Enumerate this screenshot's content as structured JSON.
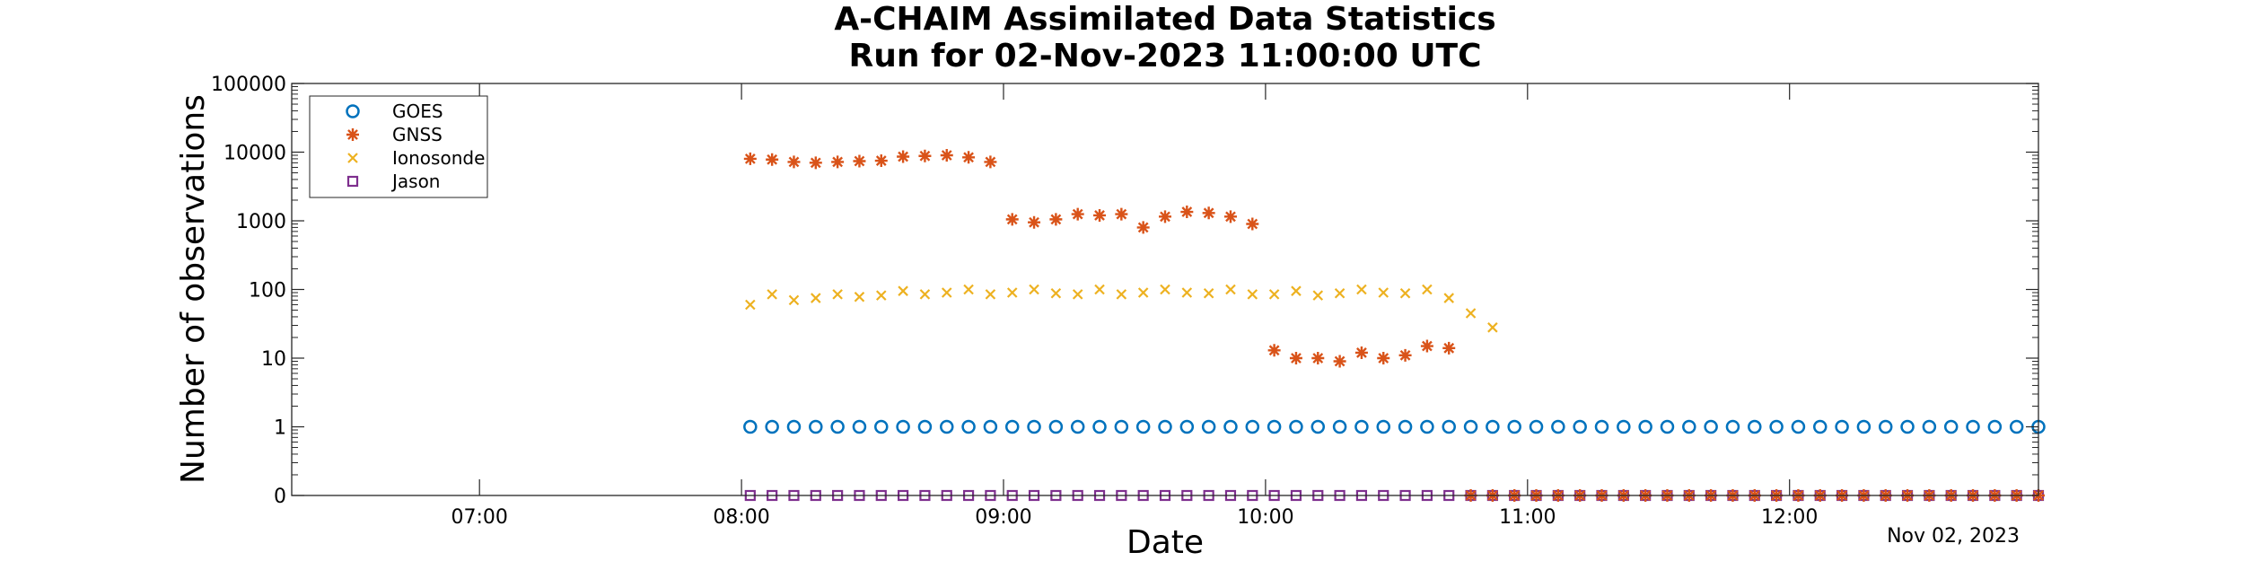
{
  "chart_data": {
    "type": "scatter",
    "title": [
      "A-CHAIM Assimilated Data Statistics",
      "Run for 02-Nov-2023 11:00:00 UTC"
    ],
    "xlabel": "Date",
    "ylabel": "Number of observations",
    "date_label": "Nov 02, 2023",
    "x_tick_labels": [
      "07:00",
      "08:00",
      "09:00",
      "10:00",
      "11:00",
      "12:00"
    ],
    "x_tick_values": [
      "06:00",
      "07:00",
      "08:00",
      "09:00",
      "10:00",
      "11:00",
      "12:00"
    ],
    "xlim": [
      "06:17",
      "12:57"
    ],
    "y_scale": "log",
    "y_tick_labels": [
      "0",
      "1",
      "10",
      "100",
      "1000",
      "10000",
      "100000"
    ],
    "ylim_decades": [
      -1,
      5
    ],
    "legend_position": "top-left",
    "series": [
      {
        "name": "GOES",
        "marker": "circle",
        "color": "#0072bd",
        "x": [
          "08:02",
          "08:07",
          "08:12",
          "08:17",
          "08:22",
          "08:27",
          "08:32",
          "08:37",
          "08:42",
          "08:47",
          "08:52",
          "08:57",
          "09:02",
          "09:07",
          "09:12",
          "09:17",
          "09:22",
          "09:27",
          "09:32",
          "09:37",
          "09:42",
          "09:47",
          "09:52",
          "09:57",
          "10:02",
          "10:07",
          "10:12",
          "10:17",
          "10:22",
          "10:27",
          "10:32",
          "10:37",
          "10:42",
          "10:47",
          "10:52",
          "10:57",
          "11:02",
          "11:07",
          "11:12",
          "11:17",
          "11:22",
          "11:27",
          "11:32",
          "11:37",
          "11:42",
          "11:47",
          "11:52",
          "11:57",
          "12:02",
          "12:07",
          "12:12",
          "12:17",
          "12:22",
          "12:27",
          "12:32",
          "12:37",
          "12:42",
          "12:47",
          "12:52",
          "12:57"
        ],
        "y": [
          1,
          1,
          1,
          1,
          1,
          1,
          1,
          1,
          1,
          1,
          1,
          1,
          1,
          1,
          1,
          1,
          1,
          1,
          1,
          1,
          1,
          1,
          1,
          1,
          1,
          1,
          1,
          1,
          1,
          1,
          1,
          1,
          1,
          1,
          1,
          1,
          1,
          1,
          1,
          1,
          1,
          1,
          1,
          1,
          1,
          1,
          1,
          1,
          1,
          1,
          1,
          1,
          1,
          1,
          1,
          1,
          1,
          1,
          1,
          1
        ]
      },
      {
        "name": "GNSS",
        "marker": "asterisk",
        "color": "#d95319",
        "x": [
          "08:02",
          "08:07",
          "08:12",
          "08:17",
          "08:22",
          "08:27",
          "08:32",
          "08:37",
          "08:42",
          "08:47",
          "08:52",
          "08:57",
          "09:02",
          "09:07",
          "09:12",
          "09:17",
          "09:22",
          "09:27",
          "09:32",
          "09:37",
          "09:42",
          "09:47",
          "09:52",
          "09:57",
          "10:02",
          "10:07",
          "10:12",
          "10:17",
          "10:22",
          "10:27",
          "10:32",
          "10:37",
          "10:42",
          "10:47",
          "10:52",
          "10:57",
          "11:02",
          "11:07",
          "11:12",
          "11:17",
          "11:22",
          "11:27",
          "11:32",
          "11:37",
          "11:42",
          "11:47",
          "11:52",
          "11:57",
          "12:02",
          "12:07",
          "12:12",
          "12:17",
          "12:22",
          "12:27",
          "12:32",
          "12:37",
          "12:42",
          "12:47",
          "12:52",
          "12:57"
        ],
        "y": [
          8000,
          7800,
          7200,
          7000,
          7200,
          7400,
          7500,
          8600,
          8800,
          9000,
          8400,
          7200,
          1050,
          950,
          1050,
          1250,
          1200,
          1250,
          800,
          1150,
          1350,
          1300,
          1150,
          900,
          13,
          10,
          10,
          9,
          12,
          10,
          11,
          15,
          14,
          0,
          0,
          0,
          0,
          0,
          0,
          0,
          0,
          0,
          0,
          0,
          0,
          0,
          0,
          0,
          0,
          0,
          0,
          0,
          0,
          0,
          0,
          0,
          0,
          0,
          0,
          0
        ]
      },
      {
        "name": "Ionosonde",
        "marker": "x",
        "color": "#edb120",
        "x": [
          "08:02",
          "08:07",
          "08:12",
          "08:17",
          "08:22",
          "08:27",
          "08:32",
          "08:37",
          "08:42",
          "08:47",
          "08:52",
          "08:57",
          "09:02",
          "09:07",
          "09:12",
          "09:17",
          "09:22",
          "09:27",
          "09:32",
          "09:37",
          "09:42",
          "09:47",
          "09:52",
          "09:57",
          "10:02",
          "10:07",
          "10:12",
          "10:17",
          "10:22",
          "10:27",
          "10:32",
          "10:37",
          "10:42",
          "10:47",
          "10:52",
          "10:57",
          "11:02",
          "11:07",
          "11:12",
          "11:17",
          "11:22",
          "11:27",
          "11:32",
          "11:37",
          "11:42",
          "11:47",
          "11:52",
          "11:57",
          "12:02",
          "12:07",
          "12:12",
          "12:17",
          "12:22",
          "12:27",
          "12:32",
          "12:37",
          "12:42",
          "12:47",
          "12:52",
          "12:57"
        ],
        "y": [
          60,
          85,
          70,
          75,
          85,
          78,
          82,
          95,
          85,
          90,
          100,
          85,
          90,
          100,
          88,
          85,
          100,
          85,
          90,
          100,
          90,
          88,
          100,
          85,
          85,
          95,
          82,
          88,
          100,
          90,
          88,
          100,
          75,
          45,
          28,
          0,
          0,
          0,
          0,
          0,
          0,
          0,
          0,
          0,
          0,
          0,
          0,
          0,
          0,
          0,
          0,
          0,
          0,
          0,
          0,
          0,
          0,
          0,
          0,
          0
        ]
      },
      {
        "name": "Jason",
        "marker": "square",
        "color": "#7e2f8e",
        "x": [
          "08:02",
          "08:07",
          "08:12",
          "08:17",
          "08:22",
          "08:27",
          "08:32",
          "08:37",
          "08:42",
          "08:47",
          "08:52",
          "08:57",
          "09:02",
          "09:07",
          "09:12",
          "09:17",
          "09:22",
          "09:27",
          "09:32",
          "09:37",
          "09:42",
          "09:47",
          "09:52",
          "09:57",
          "10:02",
          "10:07",
          "10:12",
          "10:17",
          "10:22",
          "10:27",
          "10:32",
          "10:37",
          "10:42",
          "10:47",
          "10:52",
          "10:57",
          "11:02",
          "11:07",
          "11:12",
          "11:17",
          "11:22",
          "11:27",
          "11:32",
          "11:37",
          "11:42",
          "11:47",
          "11:52",
          "11:57",
          "12:02",
          "12:07",
          "12:12",
          "12:17",
          "12:22",
          "12:27",
          "12:32",
          "12:37",
          "12:42",
          "12:47",
          "12:52",
          "12:57"
        ],
        "y": [
          0,
          0,
          0,
          0,
          0,
          0,
          0,
          0,
          0,
          0,
          0,
          0,
          0,
          0,
          0,
          0,
          0,
          0,
          0,
          0,
          0,
          0,
          0,
          0,
          0,
          0,
          0,
          0,
          0,
          0,
          0,
          0,
          0,
          0,
          0,
          0,
          0,
          0,
          0,
          0,
          0,
          0,
          0,
          0,
          0,
          0,
          0,
          0,
          0,
          0,
          0,
          0,
          0,
          0,
          0,
          0,
          0,
          0,
          0,
          0
        ]
      }
    ]
  }
}
